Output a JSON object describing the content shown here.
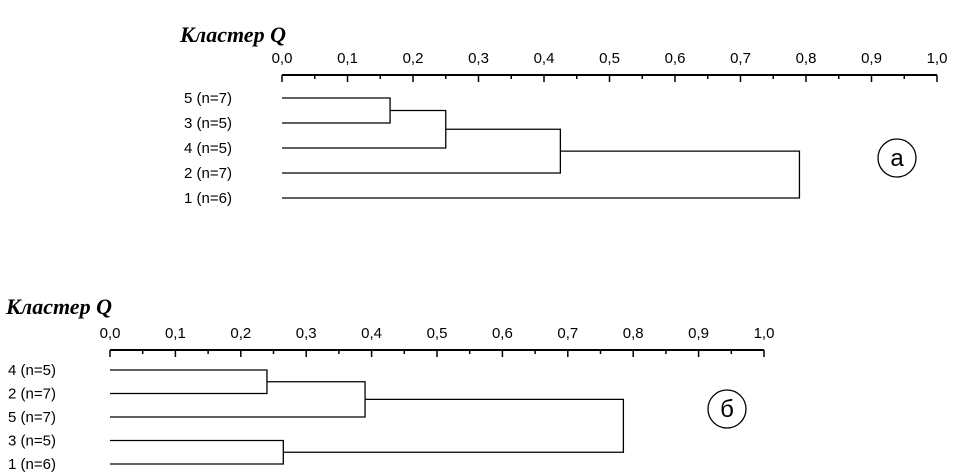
{
  "chart_data": [
    {
      "type": "dendrogram",
      "title": "Кластер Q",
      "panel_label": "а",
      "xlim": [
        0,
        1.0
      ],
      "ticks": [
        0,
        0.1,
        0.2,
        0.3,
        0.4,
        0.5,
        0.6,
        0.7,
        0.8,
        0.9,
        1.0
      ],
      "tick_labels": [
        "0,0",
        "0,1",
        "0,2",
        "0,3",
        "0,4",
        "0,5",
        "0,6",
        "0,7",
        "0,8",
        "0,9",
        "1,0"
      ],
      "leaves": [
        "5 (n=7)",
        "3 (n=5)",
        "4 (n=5)",
        "2 (n=7)",
        "1 (n=6)"
      ],
      "merges": [
        {
          "a": 0,
          "b": 1,
          "height": 0.165
        },
        {
          "a": "m0",
          "b": 2,
          "height": 0.25
        },
        {
          "a": "m1",
          "b": 3,
          "height": 0.425
        },
        {
          "a": "m2",
          "b": 4,
          "height": 0.79
        }
      ]
    },
    {
      "type": "dendrogram",
      "title": "Кластер Q",
      "panel_label": "б",
      "xlim": [
        0,
        1.0
      ],
      "ticks": [
        0,
        0.1,
        0.2,
        0.3,
        0.4,
        0.5,
        0.6,
        0.7,
        0.8,
        0.9,
        1.0
      ],
      "tick_labels": [
        "0,0",
        "0,1",
        "0,2",
        "0,3",
        "0,4",
        "0,5",
        "0,6",
        "0,7",
        "0,8",
        "0,9",
        "1,0"
      ],
      "leaves": [
        "4 (n=5)",
        "2 (n=7)",
        "5 (n=7)",
        "3 (n=5)",
        "1 (n=6)"
      ],
      "merges": [
        {
          "a": 0,
          "b": 1,
          "height": 0.24
        },
        {
          "a": "m0",
          "b": 2,
          "height": 0.39
        },
        {
          "a": 3,
          "b": 4,
          "height": 0.265
        },
        {
          "a": "m1",
          "b": "m2",
          "height": 0.785
        }
      ]
    }
  ]
}
